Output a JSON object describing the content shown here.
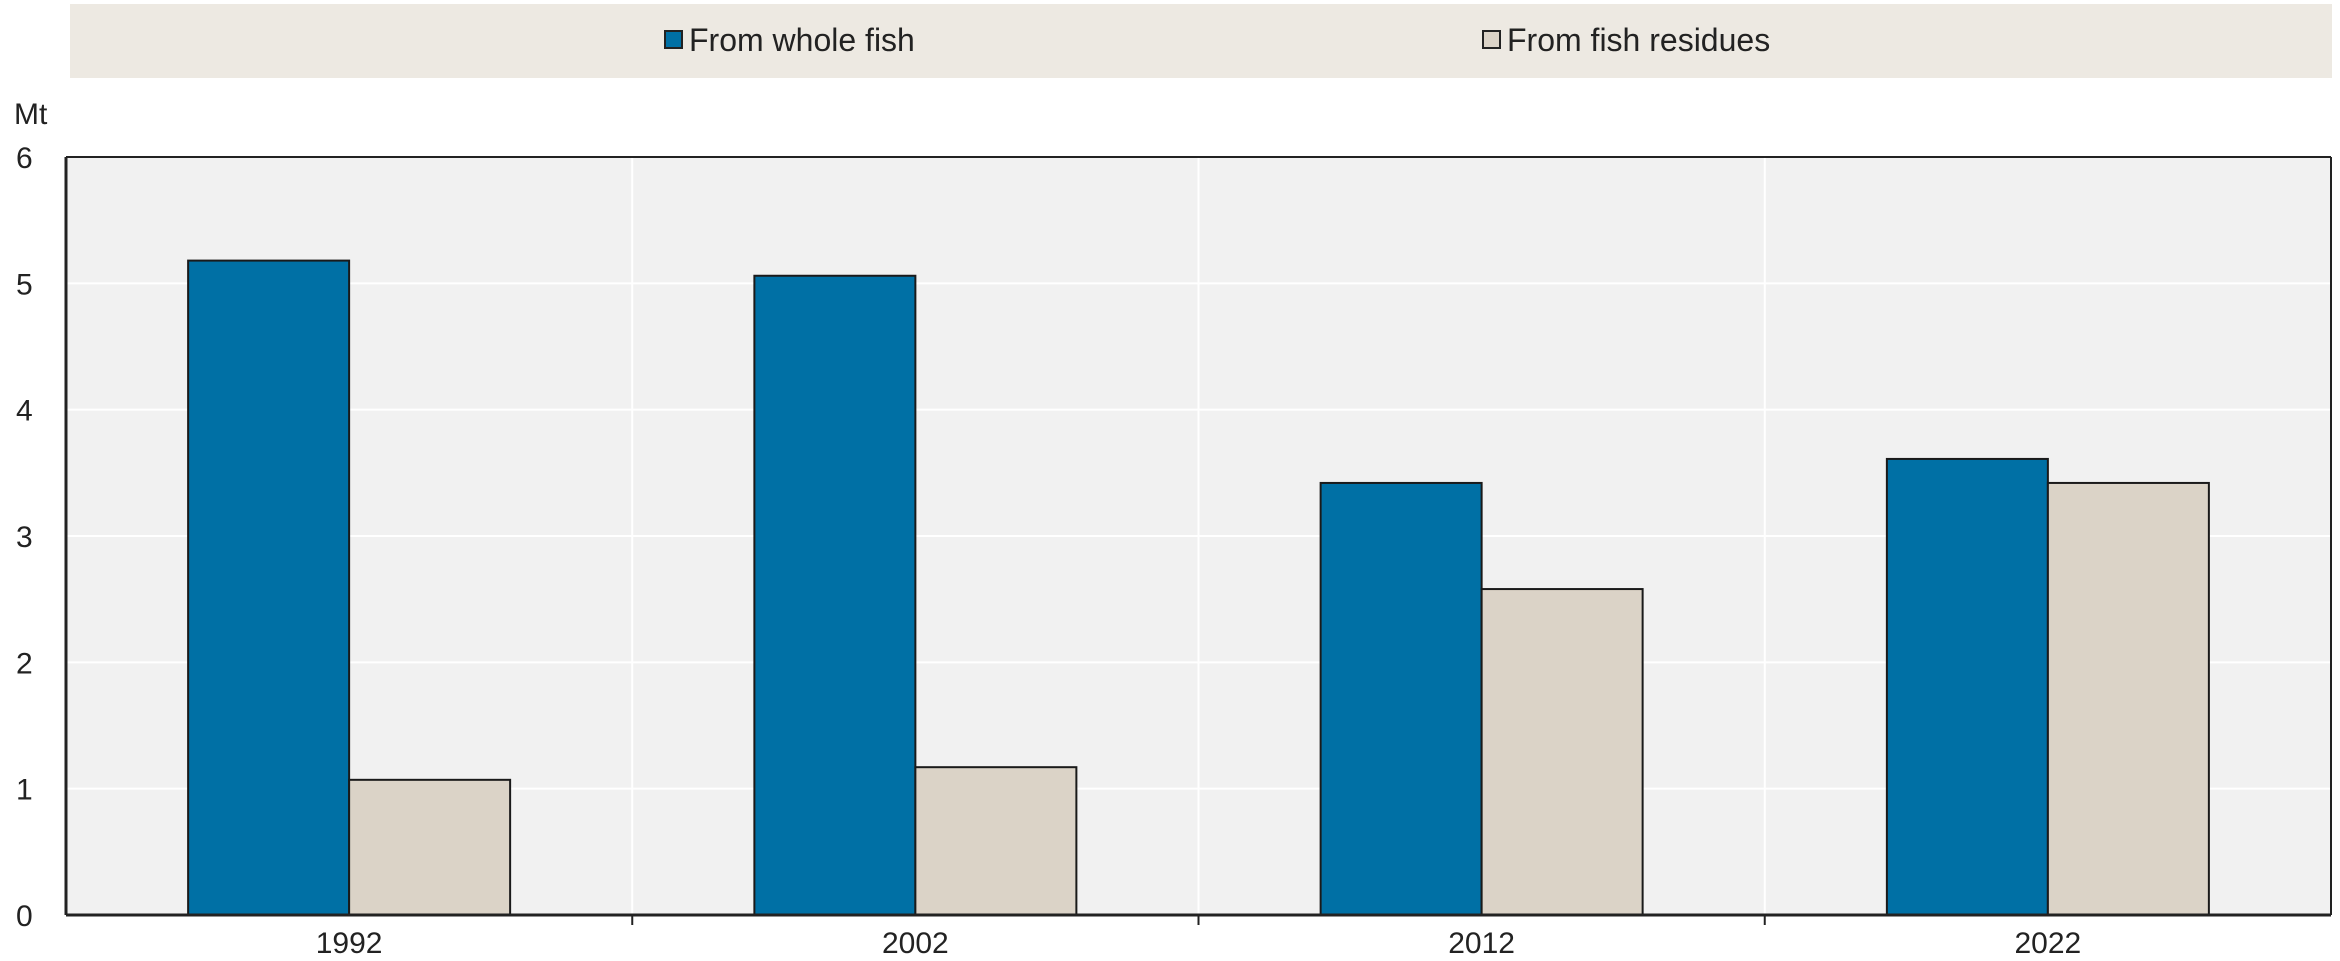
{
  "chart_data": {
    "type": "bar",
    "categories": [
      "1992",
      "2002",
      "2012",
      "2022"
    ],
    "series": [
      {
        "name": "From whole fish",
        "values": [
          5.18,
          5.06,
          3.42,
          3.61
        ],
        "color": "#0070a5"
      },
      {
        "name": "From fish residues",
        "values": [
          1.07,
          1.17,
          2.58,
          3.42
        ],
        "color": "#dbd3c7"
      }
    ],
    "ylabel": "Mt",
    "ylim": [
      0,
      6
    ],
    "yticks": [
      "0",
      "1",
      "2",
      "3",
      "4",
      "5",
      "6"
    ],
    "grid": true,
    "legend_position": "top",
    "colors": {
      "legend_background": "#ede9e2",
      "plot_background": "#f1f1f1",
      "gridline": "#ffffff",
      "axis": "#222222"
    }
  }
}
